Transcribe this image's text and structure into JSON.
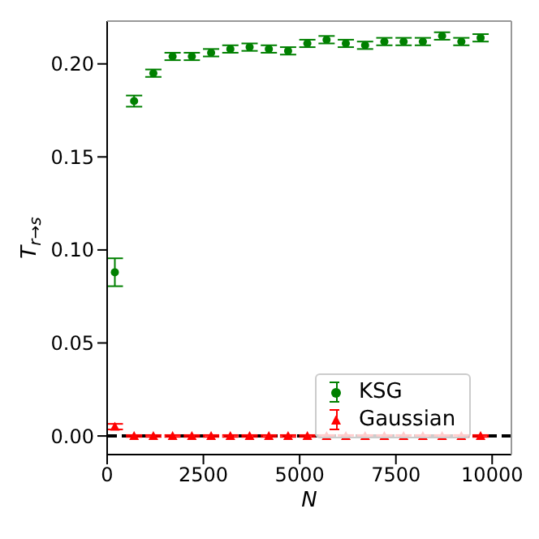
{
  "chart_data": {
    "type": "scatter",
    "xlabel": "N",
    "ylabel": "T$_{r→s}$",
    "x": [
      200,
      700,
      1200,
      1700,
      2200,
      2700,
      3200,
      3700,
      4200,
      4700,
      5200,
      5700,
      6200,
      6700,
      7200,
      7700,
      8200,
      8700,
      9200,
      9700
    ],
    "series": [
      {
        "name": "KSG",
        "color": "#008000",
        "marker": "circle",
        "values": [
          0.088,
          0.18,
          0.195,
          0.204,
          0.204,
          0.206,
          0.208,
          0.209,
          0.208,
          0.207,
          0.211,
          0.213,
          0.211,
          0.21,
          0.212,
          0.212,
          0.212,
          0.215,
          0.212,
          0.214
        ],
        "errors": [
          0.0075,
          0.003,
          0.002,
          0.002,
          0.002,
          0.002,
          0.002,
          0.002,
          0.002,
          0.002,
          0.002,
          0.002,
          0.002,
          0.002,
          0.002,
          0.002,
          0.002,
          0.002,
          0.002,
          0.002
        ]
      },
      {
        "name": "Gaussian",
        "color": "#ff0000",
        "marker": "triangle",
        "values": [
          0.005,
          0,
          0,
          0,
          0,
          0,
          0,
          0,
          0,
          0,
          0,
          0,
          0,
          0,
          0,
          0,
          0,
          0,
          0,
          0
        ],
        "errors": [
          0.0015,
          0.0005,
          0.0005,
          0.0005,
          0.0005,
          0.0005,
          0.0005,
          0.0005,
          0.0005,
          0.0005,
          0.0005,
          0.0005,
          0.0005,
          0.0005,
          0.0005,
          0.0005,
          0.0005,
          0.0005,
          0.0005,
          0.0005
        ]
      }
    ],
    "xlim": [
      0,
      10500
    ],
    "xticks": [
      0,
      2500,
      5000,
      7500,
      10000
    ],
    "ylim": [
      -0.01,
      0.223
    ],
    "yticks": [
      {
        "value": 0,
        "label": "0.00"
      },
      {
        "value": 0.05,
        "label": "0.05"
      },
      {
        "value": 0.1,
        "label": "0.10"
      },
      {
        "value": 0.15,
        "label": "0.15"
      },
      {
        "value": 0.2,
        "label": "0.20"
      }
    ],
    "ref_lines": [
      {
        "axis": "y",
        "value": 0,
        "color": "#000000",
        "line_style": "dashed"
      }
    ],
    "legend": "bottom right",
    "grid": false
  }
}
